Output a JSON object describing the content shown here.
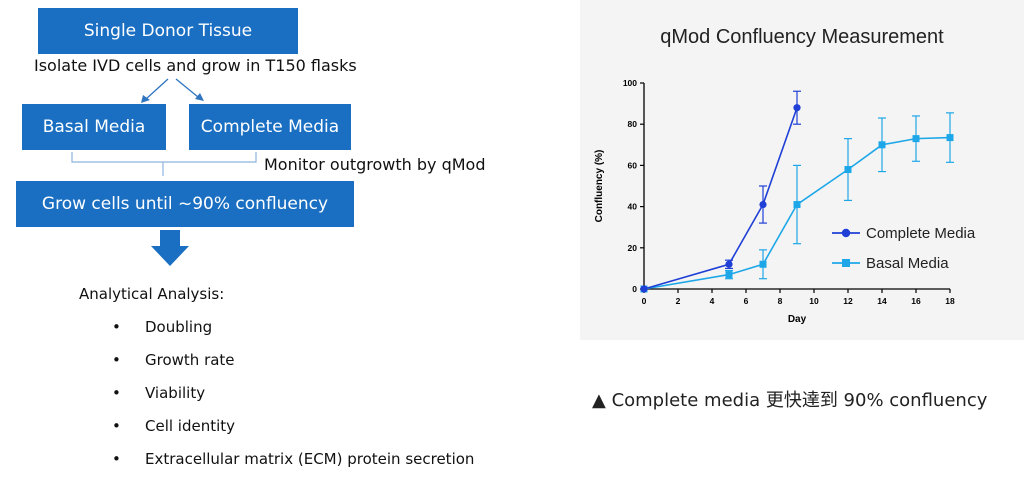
{
  "flow": {
    "top_box": "Single Donor Tissue",
    "isolate_text": "Isolate IVD cells and grow in T150 flasks",
    "basal_box": "Basal Media",
    "complete_box": "Complete Media",
    "monitor_text": "Monitor outgrowth by qMod",
    "grow_box": "Grow cells until ~90% confluency",
    "analysis_heading": "Analytical Analysis:",
    "analysis_items": [
      "Doubling",
      "Growth rate",
      "Viability",
      "Cell identity",
      "Extracellular matrix (ECM) protein secretion"
    ]
  },
  "caption": "▲ Complete media  更快達到  90% confluency",
  "colors": {
    "box": "#1a6fc2",
    "complete": "#1f3fd6",
    "basal": "#1ea7e8"
  },
  "chart_data": {
    "type": "line",
    "title": "qMod Confluency Measurement",
    "xlabel": "Day",
    "ylabel": "Confluency (%)",
    "xlim": [
      0,
      18
    ],
    "ylim": [
      0,
      100
    ],
    "xticks": [
      0,
      2,
      4,
      6,
      8,
      10,
      12,
      14,
      16,
      18
    ],
    "yticks": [
      0,
      20,
      40,
      60,
      80,
      100
    ],
    "legend_position": "lower-right",
    "series": [
      {
        "name": "Complete Media",
        "marker": "circle",
        "x": [
          0,
          5,
          7,
          9
        ],
        "y": [
          0,
          12,
          41,
          88
        ],
        "err": [
          0,
          2,
          9,
          8
        ]
      },
      {
        "name": "Basal Media",
        "marker": "square",
        "x": [
          0,
          5,
          7,
          9,
          12,
          14,
          16,
          18
        ],
        "y": [
          0,
          7,
          12,
          41,
          58,
          70,
          73,
          73.5
        ],
        "err": [
          0,
          2,
          7,
          19,
          15,
          13,
          11,
          12
        ]
      }
    ]
  }
}
